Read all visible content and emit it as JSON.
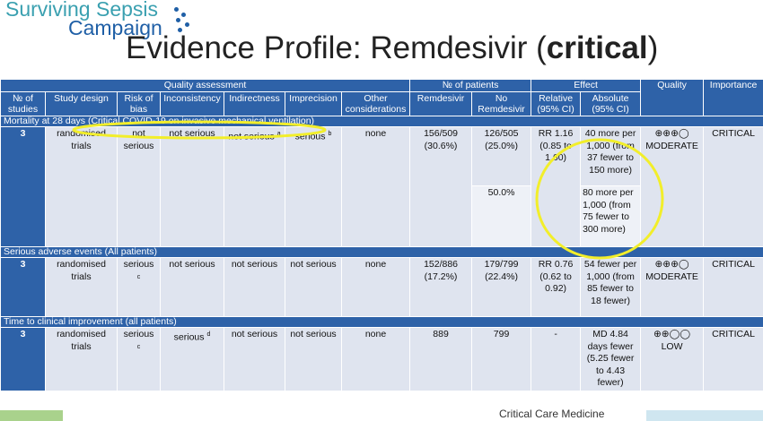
{
  "logo": {
    "line1": "Surviving Sepsis",
    "line2": "Campaign"
  },
  "title": {
    "prefix": "Evidence Profile: Remdesivir (",
    "emph": "critical",
    "suffix": ")"
  },
  "headers": {
    "quality_assessment": "Quality assessment",
    "num_patients": "№ of patients",
    "effect": "Effect",
    "quality": "Quality",
    "importance": "Importance",
    "cols": {
      "studies": "№ of studies",
      "design": "Study design",
      "bias": "Risk of bias",
      "inconsistency": "Inconsistency",
      "indirectness": "Indirectness",
      "imprecision": "Imprecision",
      "other": "Other considerations",
      "remdesivir": "Remdesivir",
      "no_remdesivir": "No Remdesivir",
      "relative": "Relative (95% CI)",
      "absolute": "Absolute (95% CI)"
    }
  },
  "outcomes": [
    {
      "section": "Mortality at 28 days (Critical COVID-19 on invasive mechanical ventilation)",
      "studies": "3",
      "design": "randomised trials",
      "bias": "not serious",
      "inconsistency": "not serious",
      "indirectness": "not serious",
      "indirectness_sup": "a",
      "imprecision": "serious",
      "imprecision_sup": "b",
      "other": "none",
      "remdesivir": "156/509 (30.6%)",
      "no_remdesivir": "126/505 (25.0%)",
      "relative": "RR 1.16 (0.85 to 1.60)",
      "absolute": "40 more per 1,000 (from 37 fewer to 150 more)",
      "quality_symbols": "⊕⊕⊕◯",
      "quality_label": "MODERATE",
      "importance": "CRITICAL",
      "extra_baseline": "50.0%",
      "extra_absolute": "80 more per 1,000 (from 75 fewer to 300 more)"
    },
    {
      "section": "Serious adverse events (All patients)",
      "studies": "3",
      "design": "randomised trials",
      "bias": "serious",
      "bias_sup": "c",
      "inconsistency": "not serious",
      "indirectness": "not serious",
      "imprecision": "not serious",
      "other": "none",
      "remdesivir": "152/886 (17.2%)",
      "no_remdesivir": "179/799 (22.4%)",
      "relative": "RR 0.76 (0.62 to 0.92)",
      "absolute": "54 fewer per 1,000 (from 85 fewer to 18 fewer)",
      "quality_symbols": "⊕⊕⊕◯",
      "quality_label": "MODERATE",
      "importance": "CRITICAL"
    },
    {
      "section": "Time to clinical improvement (all patients)",
      "studies": "3",
      "design": "randomised trials",
      "bias": "serious",
      "bias_sup": "c",
      "inconsistency": "serious",
      "inconsistency_sup": "d",
      "indirectness": "not serious",
      "imprecision": "not serious",
      "other": "none",
      "remdesivir": "889",
      "no_remdesivir": "799",
      "relative": "-",
      "absolute": "MD 4.84 days fewer (5.25 fewer to 4.43 fewer)",
      "quality_symbols": "⊕⊕◯◯",
      "quality_label": "LOW",
      "importance": "CRITICAL"
    }
  ],
  "footer": {
    "text": "Critical Care Medicine"
  },
  "colors": {
    "header_blue": "#2e62a8",
    "row_bg": "#dfe4ef",
    "highlight": "#f2ee2a"
  }
}
